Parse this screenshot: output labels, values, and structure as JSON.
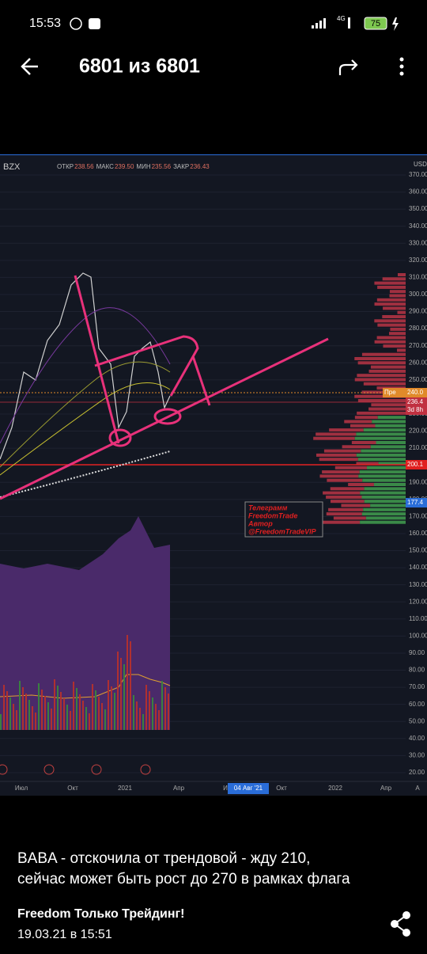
{
  "status_bar": {
    "time": "15:53",
    "network": "4G",
    "battery": "75"
  },
  "header": {
    "title": "6801 из 6801"
  },
  "chart_image": {
    "symbol": "BZX",
    "ohlc": [
      {
        "label": "ОТКР",
        "value": "238.56"
      },
      {
        "label": "МАКС",
        "value": "239.50"
      },
      {
        "label": "МИН",
        "value": "235.56"
      },
      {
        "label": "ЗАКР",
        "value": "236.43"
      }
    ],
    "currency": "USD",
    "price_labels": [
      "370.00",
      "360.00",
      "350.00",
      "340.00",
      "330.00",
      "320.00",
      "310.00",
      "300.00",
      "290.00",
      "280.00",
      "270.00",
      "260.00",
      "250.00",
      "240.00",
      "230.00",
      "220.00",
      "210.00",
      "200.00",
      "190.00",
      "180.00",
      "170.00",
      "160.00",
      "150.00",
      "140.00",
      "130.00",
      "120.00",
      "110.00",
      "100.00",
      "90.00",
      "80.00",
      "70.00",
      "60.00",
      "50.00",
      "40.00",
      "30.00",
      "20.00"
    ],
    "price_tags": {
      "pre": "Пре",
      "current": "240.0",
      "close": "236.4",
      "countdown": "3d 8h",
      "level_red": "200.1",
      "level_blue": "177.4"
    },
    "time_labels": [
      "Июл",
      "Окт",
      "2021",
      "Апр",
      "И",
      "Окт",
      "2022",
      "Апр",
      "A"
    ],
    "cursor_date": "04 Авг '21",
    "annotation": [
      "Телеграмм",
      "FreedomTrade",
      "Автор",
      "@FreedomTradeVIP"
    ]
  },
  "post": {
    "caption": [
      "BABA - отскочила от трендовой - жду 210,",
      "сейчас может быть рост до 270 в рамках флага"
    ],
    "channel": "Freedom Только Трейдинг!",
    "date": "19.03.21 в 15:51"
  }
}
